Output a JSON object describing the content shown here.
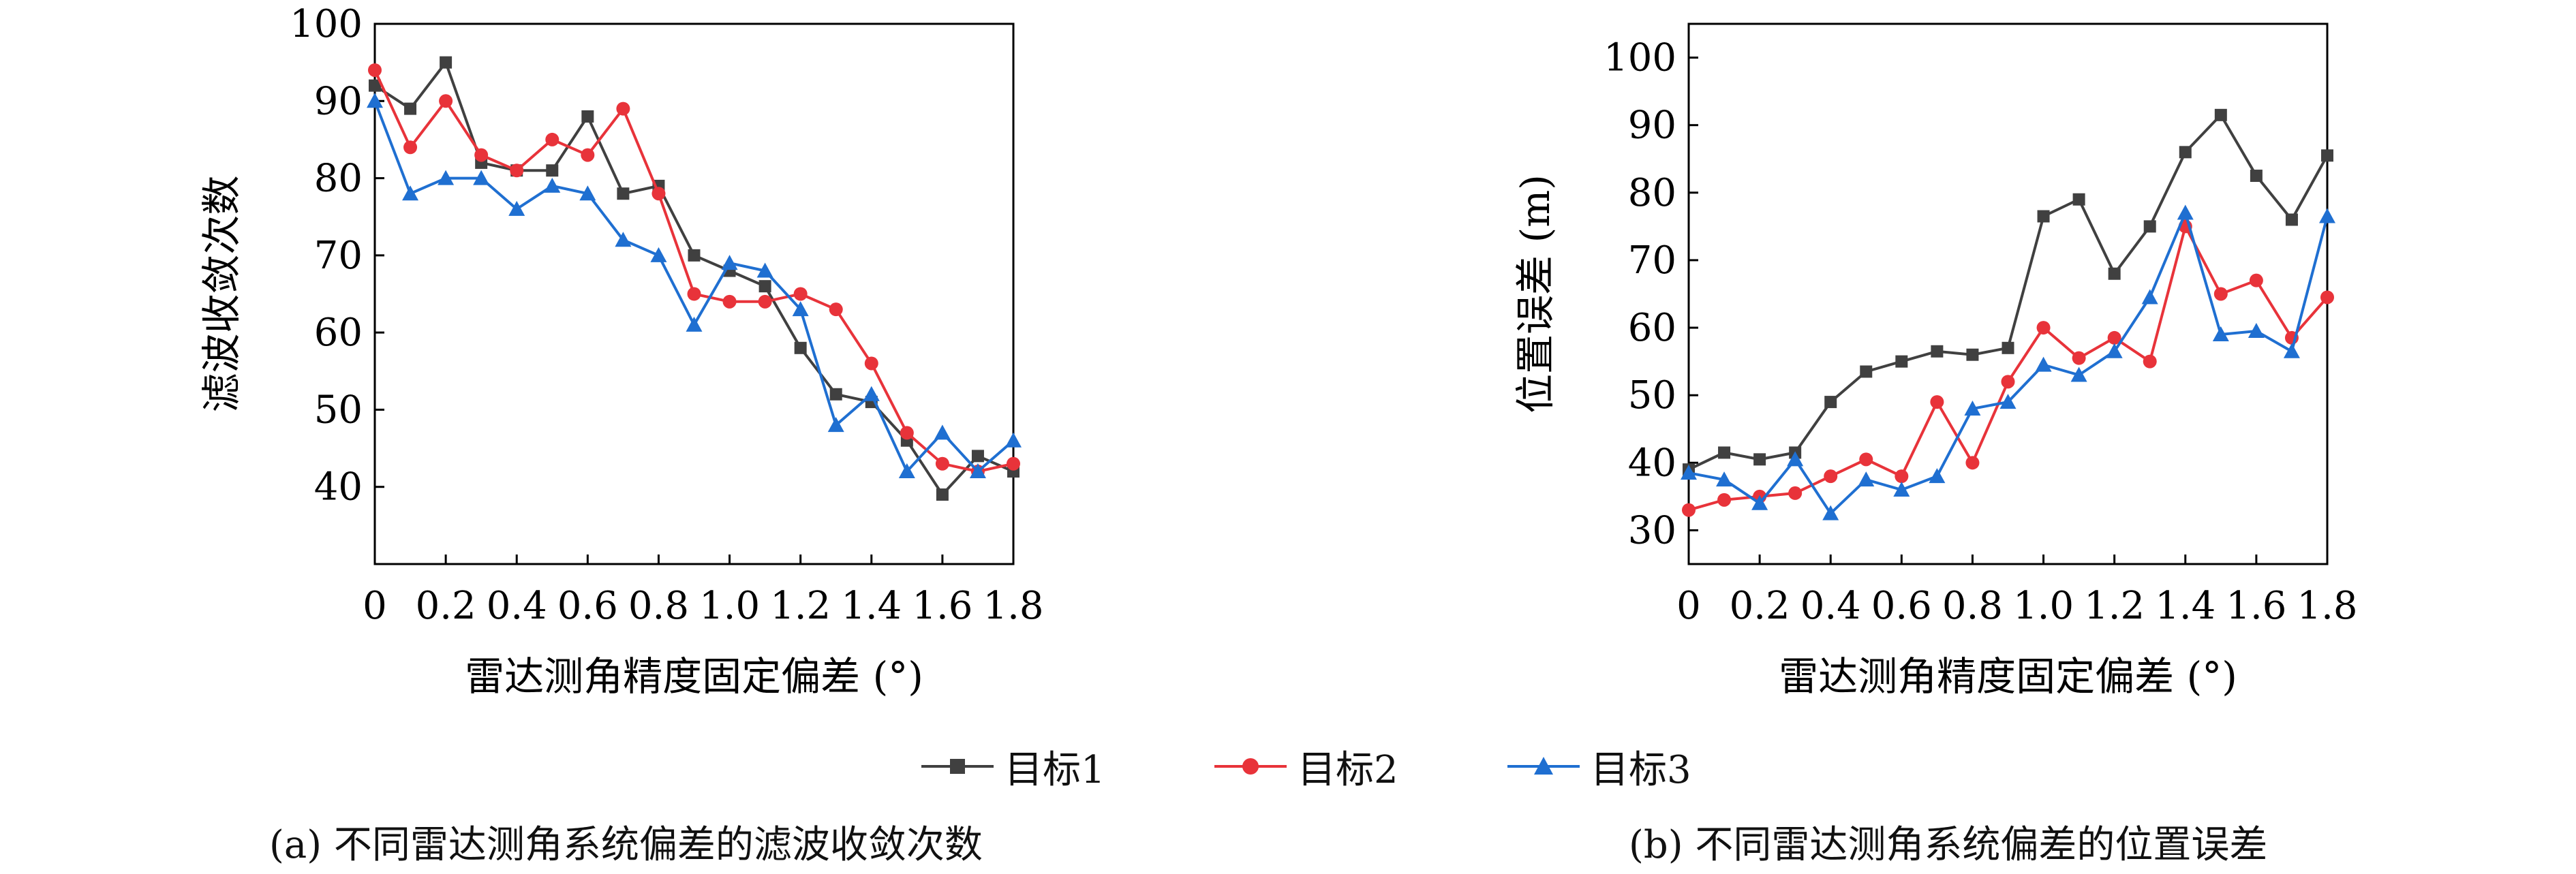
{
  "chart_data": [
    {
      "type": "line",
      "caption": "(a) 不同雷达测角系统偏差的滤波收敛次数",
      "xlabel": "雷达测角精度固定偏差 (°)",
      "ylabel": "滤波收敛次数",
      "xlim": [
        0,
        1.8
      ],
      "ylim": [
        30,
        100
      ],
      "xticks": [
        "0",
        "0.2",
        "0.4",
        "0.6",
        "0.8",
        "1.0",
        "1.2",
        "1.4",
        "1.6",
        "1.8"
      ],
      "yticks": [
        "40",
        "50",
        "60",
        "70",
        "80",
        "90",
        "100"
      ],
      "grid": false,
      "x": [
        0,
        0.1,
        0.2,
        0.3,
        0.4,
        0.5,
        0.6,
        0.7,
        0.8,
        0.9,
        1.0,
        1.1,
        1.2,
        1.3,
        1.4,
        1.5,
        1.6,
        1.7,
        1.8
      ],
      "series": [
        {
          "name": "目标1",
          "color": "#404040",
          "marker": "square",
          "values": [
            92,
            89,
            95,
            82,
            81,
            81,
            88,
            78,
            79,
            70,
            68,
            66,
            58,
            52,
            51,
            46,
            39,
            44,
            42
          ]
        },
        {
          "name": "目标2",
          "color": "#e8333a",
          "marker": "circle",
          "values": [
            94,
            84,
            90,
            83,
            81,
            85,
            83,
            89,
            78,
            65,
            64,
            64,
            65,
            63,
            56,
            47,
            43,
            42,
            43
          ]
        },
        {
          "name": "目标3",
          "color": "#1f6fd1",
          "marker": "triangle",
          "values": [
            90,
            78,
            80,
            80,
            76,
            79,
            78,
            72,
            70,
            61,
            69,
            68,
            63,
            48,
            52,
            42,
            47,
            42,
            46
          ]
        }
      ]
    },
    {
      "type": "line",
      "caption": "(b) 不同雷达测角系统偏差的位置误差",
      "xlabel": "雷达测角精度固定偏差 (°)",
      "ylabel": "位置误差 (m)",
      "xlim": [
        0,
        1.8
      ],
      "ylim": [
        25,
        105
      ],
      "xticks": [
        "0",
        "0.2",
        "0.4",
        "0.6",
        "0.8",
        "1.0",
        "1.2",
        "1.4",
        "1.6",
        "1.8"
      ],
      "yticks": [
        "30",
        "40",
        "50",
        "60",
        "70",
        "80",
        "90",
        "100"
      ],
      "grid": false,
      "x": [
        0,
        0.1,
        0.2,
        0.3,
        0.4,
        0.5,
        0.6,
        0.7,
        0.8,
        0.9,
        1.0,
        1.1,
        1.2,
        1.3,
        1.4,
        1.5,
        1.6,
        1.7,
        1.8
      ],
      "series": [
        {
          "name": "目标1",
          "color": "#404040",
          "marker": "square",
          "values": [
            39,
            41.5,
            40.5,
            41.5,
            49,
            53.5,
            55,
            56.5,
            56,
            57,
            76.5,
            79,
            68,
            75,
            86,
            91.5,
            82.5,
            76,
            85.5
          ]
        },
        {
          "name": "目标2",
          "color": "#e8333a",
          "marker": "circle",
          "values": [
            33,
            34.5,
            35,
            35.5,
            38,
            40.5,
            38,
            49,
            40,
            52,
            60,
            55.5,
            58.5,
            55,
            75,
            65,
            67,
            58.5,
            64.5
          ]
        },
        {
          "name": "目标3",
          "color": "#1f6fd1",
          "marker": "triangle",
          "values": [
            38.5,
            37.5,
            34,
            40.5,
            32.5,
            37.5,
            36,
            38,
            48,
            49,
            54.5,
            53,
            56.5,
            64.5,
            77,
            59,
            59.5,
            56.5,
            76.5
          ]
        }
      ]
    }
  ],
  "legend": [
    {
      "name": "目标1",
      "color": "#404040",
      "marker": "square"
    },
    {
      "name": "目标2",
      "color": "#e8333a",
      "marker": "circle"
    },
    {
      "name": "目标3",
      "color": "#1f6fd1",
      "marker": "triangle"
    }
  ]
}
